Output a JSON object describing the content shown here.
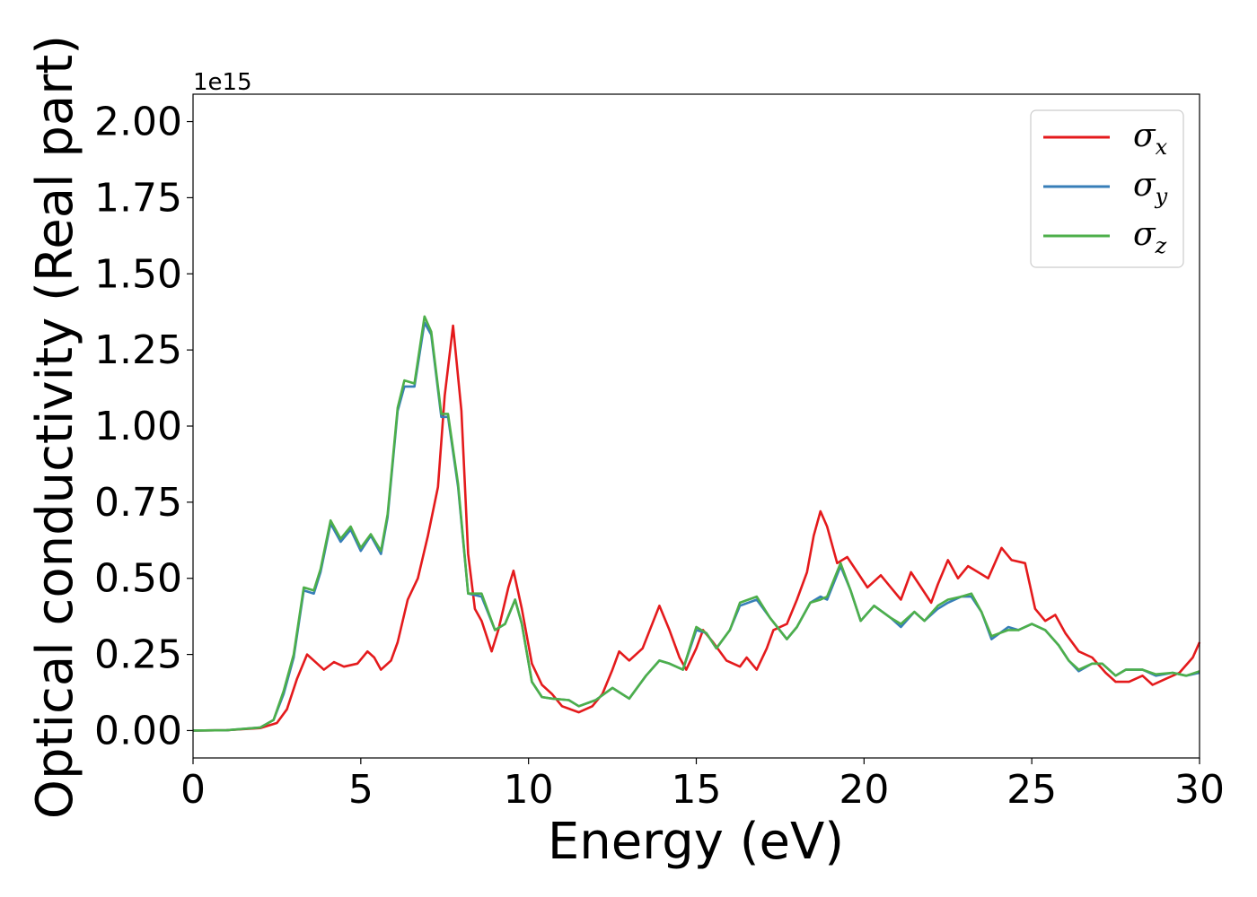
{
  "chart_data": {
    "type": "line",
    "xlabel": "Energy (eV)",
    "ylabel": "Optical conductivity (Real part)",
    "y_offset_label": "1e15",
    "xlim": [
      0,
      30
    ],
    "ylim": [
      -0.09,
      2.09
    ],
    "x_ticks": [
      0,
      5,
      10,
      15,
      20,
      25,
      30
    ],
    "x_tick_labels": [
      "0",
      "5",
      "10",
      "15",
      "20",
      "25",
      "30"
    ],
    "y_ticks": [
      0.0,
      0.25,
      0.5,
      0.75,
      1.0,
      1.25,
      1.5,
      1.75,
      2.0
    ],
    "y_tick_labels": [
      "0.00",
      "0.25",
      "0.50",
      "0.75",
      "1.00",
      "1.25",
      "1.50",
      "1.75",
      "2.00"
    ],
    "grid": false,
    "legend_position": "top-right",
    "series": [
      {
        "name": "σx",
        "symbol": "σ",
        "subscript": "x",
        "color": "#e41a1c",
        "points": [
          [
            0,
            0
          ],
          [
            1,
            0.001
          ],
          [
            2,
            0.008
          ],
          [
            2.5,
            0.025
          ],
          [
            2.8,
            0.07
          ],
          [
            3.1,
            0.17
          ],
          [
            3.4,
            0.25
          ],
          [
            3.7,
            0.22
          ],
          [
            3.9,
            0.2
          ],
          [
            4.2,
            0.225
          ],
          [
            4.5,
            0.21
          ],
          [
            4.9,
            0.22
          ],
          [
            5.2,
            0.26
          ],
          [
            5.4,
            0.24
          ],
          [
            5.6,
            0.2
          ],
          [
            5.9,
            0.23
          ],
          [
            6.1,
            0.29
          ],
          [
            6.4,
            0.43
          ],
          [
            6.7,
            0.5
          ],
          [
            7.0,
            0.64
          ],
          [
            7.3,
            0.8
          ],
          [
            7.5,
            1.1
          ],
          [
            7.75,
            1.33
          ],
          [
            8.0,
            1.05
          ],
          [
            8.2,
            0.58
          ],
          [
            8.4,
            0.4
          ],
          [
            8.6,
            0.36
          ],
          [
            8.9,
            0.26
          ],
          [
            9.1,
            0.33
          ],
          [
            9.4,
            0.47
          ],
          [
            9.55,
            0.525
          ],
          [
            9.8,
            0.4
          ],
          [
            10.1,
            0.22
          ],
          [
            10.4,
            0.15
          ],
          [
            10.7,
            0.12
          ],
          [
            11.0,
            0.08
          ],
          [
            11.5,
            0.06
          ],
          [
            11.9,
            0.08
          ],
          [
            12.2,
            0.12
          ],
          [
            12.5,
            0.2
          ],
          [
            12.7,
            0.26
          ],
          [
            13.0,
            0.23
          ],
          [
            13.4,
            0.27
          ],
          [
            13.9,
            0.41
          ],
          [
            14.2,
            0.33
          ],
          [
            14.5,
            0.24
          ],
          [
            14.7,
            0.2
          ],
          [
            15.0,
            0.27
          ],
          [
            15.2,
            0.33
          ],
          [
            15.5,
            0.29
          ],
          [
            15.9,
            0.23
          ],
          [
            16.3,
            0.21
          ],
          [
            16.5,
            0.24
          ],
          [
            16.8,
            0.2
          ],
          [
            17.1,
            0.27
          ],
          [
            17.3,
            0.33
          ],
          [
            17.7,
            0.35
          ],
          [
            18.0,
            0.43
          ],
          [
            18.3,
            0.52
          ],
          [
            18.5,
            0.64
          ],
          [
            18.7,
            0.72
          ],
          [
            18.9,
            0.67
          ],
          [
            19.2,
            0.55
          ],
          [
            19.5,
            0.57
          ],
          [
            19.8,
            0.52
          ],
          [
            20.1,
            0.47
          ],
          [
            20.5,
            0.51
          ],
          [
            20.8,
            0.47
          ],
          [
            21.1,
            0.43
          ],
          [
            21.4,
            0.52
          ],
          [
            21.7,
            0.47
          ],
          [
            22.0,
            0.42
          ],
          [
            22.2,
            0.48
          ],
          [
            22.5,
            0.56
          ],
          [
            22.8,
            0.5
          ],
          [
            23.1,
            0.54
          ],
          [
            23.4,
            0.52
          ],
          [
            23.7,
            0.5
          ],
          [
            24.1,
            0.6
          ],
          [
            24.4,
            0.56
          ],
          [
            24.8,
            0.55
          ],
          [
            25.1,
            0.4
          ],
          [
            25.4,
            0.36
          ],
          [
            25.7,
            0.38
          ],
          [
            26.0,
            0.32
          ],
          [
            26.4,
            0.26
          ],
          [
            26.8,
            0.24
          ],
          [
            27.2,
            0.19
          ],
          [
            27.5,
            0.16
          ],
          [
            27.9,
            0.16
          ],
          [
            28.3,
            0.18
          ],
          [
            28.6,
            0.15
          ],
          [
            29.0,
            0.17
          ],
          [
            29.4,
            0.19
          ],
          [
            29.8,
            0.24
          ],
          [
            30.0,
            0.29
          ]
        ]
      },
      {
        "name": "σy",
        "symbol": "σ",
        "subscript": "y",
        "color": "#377eb8",
        "points": [
          [
            0,
            0
          ],
          [
            1,
            0.001
          ],
          [
            2,
            0.01
          ],
          [
            2.4,
            0.035
          ],
          [
            2.7,
            0.12
          ],
          [
            3.0,
            0.24
          ],
          [
            3.3,
            0.46
          ],
          [
            3.6,
            0.45
          ],
          [
            3.8,
            0.52
          ],
          [
            4.1,
            0.68
          ],
          [
            4.4,
            0.62
          ],
          [
            4.7,
            0.66
          ],
          [
            5.0,
            0.59
          ],
          [
            5.3,
            0.64
          ],
          [
            5.6,
            0.58
          ],
          [
            5.8,
            0.7
          ],
          [
            6.1,
            1.05
          ],
          [
            6.3,
            1.13
          ],
          [
            6.6,
            1.13
          ],
          [
            6.9,
            1.34
          ],
          [
            7.1,
            1.3
          ],
          [
            7.4,
            1.03
          ],
          [
            7.6,
            1.03
          ],
          [
            7.9,
            0.8
          ],
          [
            8.2,
            0.45
          ],
          [
            8.6,
            0.44
          ],
          [
            9.0,
            0.33
          ],
          [
            9.3,
            0.35
          ],
          [
            9.6,
            0.43
          ],
          [
            9.8,
            0.35
          ],
          [
            10.1,
            0.16
          ],
          [
            10.4,
            0.11
          ],
          [
            10.7,
            0.105
          ],
          [
            11.2,
            0.1
          ],
          [
            11.5,
            0.08
          ],
          [
            12.0,
            0.1
          ],
          [
            12.5,
            0.14
          ],
          [
            13.0,
            0.105
          ],
          [
            13.5,
            0.18
          ],
          [
            13.9,
            0.23
          ],
          [
            14.2,
            0.22
          ],
          [
            14.6,
            0.2
          ],
          [
            15.0,
            0.33
          ],
          [
            15.3,
            0.32
          ],
          [
            15.6,
            0.27
          ],
          [
            16.0,
            0.33
          ],
          [
            16.3,
            0.41
          ],
          [
            16.8,
            0.43
          ],
          [
            17.2,
            0.37
          ],
          [
            17.7,
            0.3
          ],
          [
            18.0,
            0.34
          ],
          [
            18.4,
            0.42
          ],
          [
            18.7,
            0.44
          ],
          [
            18.9,
            0.43
          ],
          [
            19.3,
            0.54
          ],
          [
            19.6,
            0.46
          ],
          [
            19.9,
            0.36
          ],
          [
            20.3,
            0.41
          ],
          [
            20.8,
            0.37
          ],
          [
            21.1,
            0.34
          ],
          [
            21.5,
            0.39
          ],
          [
            21.8,
            0.36
          ],
          [
            22.2,
            0.4
          ],
          [
            22.5,
            0.42
          ],
          [
            22.9,
            0.44
          ],
          [
            23.2,
            0.44
          ],
          [
            23.5,
            0.39
          ],
          [
            23.8,
            0.3
          ],
          [
            24.3,
            0.34
          ],
          [
            24.6,
            0.33
          ],
          [
            25.0,
            0.35
          ],
          [
            25.4,
            0.33
          ],
          [
            25.8,
            0.28
          ],
          [
            26.1,
            0.23
          ],
          [
            26.4,
            0.195
          ],
          [
            26.8,
            0.22
          ],
          [
            27.1,
            0.22
          ],
          [
            27.5,
            0.18
          ],
          [
            27.8,
            0.2
          ],
          [
            28.3,
            0.2
          ],
          [
            28.7,
            0.18
          ],
          [
            29.2,
            0.19
          ],
          [
            29.6,
            0.18
          ],
          [
            30.0,
            0.19
          ]
        ]
      },
      {
        "name": "σz",
        "symbol": "σ",
        "subscript": "z",
        "color": "#4daf4a",
        "points": [
          [
            0,
            0
          ],
          [
            1,
            0.001
          ],
          [
            2,
            0.01
          ],
          [
            2.4,
            0.035
          ],
          [
            2.7,
            0.13
          ],
          [
            3.0,
            0.25
          ],
          [
            3.3,
            0.47
          ],
          [
            3.6,
            0.46
          ],
          [
            3.8,
            0.53
          ],
          [
            4.1,
            0.69
          ],
          [
            4.4,
            0.63
          ],
          [
            4.7,
            0.67
          ],
          [
            5.0,
            0.6
          ],
          [
            5.3,
            0.645
          ],
          [
            5.6,
            0.59
          ],
          [
            5.8,
            0.71
          ],
          [
            6.1,
            1.06
          ],
          [
            6.3,
            1.15
          ],
          [
            6.6,
            1.14
          ],
          [
            6.9,
            1.36
          ],
          [
            7.1,
            1.31
          ],
          [
            7.4,
            1.04
          ],
          [
            7.6,
            1.04
          ],
          [
            7.9,
            0.81
          ],
          [
            8.2,
            0.45
          ],
          [
            8.6,
            0.45
          ],
          [
            9.0,
            0.33
          ],
          [
            9.3,
            0.35
          ],
          [
            9.6,
            0.43
          ],
          [
            9.8,
            0.35
          ],
          [
            10.1,
            0.16
          ],
          [
            10.4,
            0.11
          ],
          [
            10.7,
            0.105
          ],
          [
            11.2,
            0.1
          ],
          [
            11.5,
            0.08
          ],
          [
            12.0,
            0.1
          ],
          [
            12.5,
            0.14
          ],
          [
            13.0,
            0.105
          ],
          [
            13.5,
            0.18
          ],
          [
            13.9,
            0.23
          ],
          [
            14.2,
            0.22
          ],
          [
            14.6,
            0.2
          ],
          [
            15.0,
            0.34
          ],
          [
            15.3,
            0.32
          ],
          [
            15.6,
            0.27
          ],
          [
            16.0,
            0.33
          ],
          [
            16.3,
            0.42
          ],
          [
            16.8,
            0.44
          ],
          [
            17.2,
            0.37
          ],
          [
            17.7,
            0.3
          ],
          [
            18.0,
            0.34
          ],
          [
            18.4,
            0.42
          ],
          [
            18.7,
            0.43
          ],
          [
            18.9,
            0.44
          ],
          [
            19.3,
            0.55
          ],
          [
            19.6,
            0.46
          ],
          [
            19.9,
            0.36
          ],
          [
            20.3,
            0.41
          ],
          [
            20.8,
            0.37
          ],
          [
            21.1,
            0.35
          ],
          [
            21.5,
            0.39
          ],
          [
            21.8,
            0.36
          ],
          [
            22.2,
            0.41
          ],
          [
            22.5,
            0.43
          ],
          [
            22.9,
            0.44
          ],
          [
            23.2,
            0.45
          ],
          [
            23.5,
            0.39
          ],
          [
            23.8,
            0.31
          ],
          [
            24.3,
            0.33
          ],
          [
            24.6,
            0.33
          ],
          [
            25.0,
            0.35
          ],
          [
            25.4,
            0.33
          ],
          [
            25.8,
            0.28
          ],
          [
            26.1,
            0.23
          ],
          [
            26.4,
            0.2
          ],
          [
            26.8,
            0.22
          ],
          [
            27.1,
            0.22
          ],
          [
            27.5,
            0.18
          ],
          [
            27.8,
            0.2
          ],
          [
            28.3,
            0.2
          ],
          [
            28.7,
            0.185
          ],
          [
            29.2,
            0.19
          ],
          [
            29.6,
            0.18
          ],
          [
            30.0,
            0.195
          ]
        ]
      }
    ]
  }
}
